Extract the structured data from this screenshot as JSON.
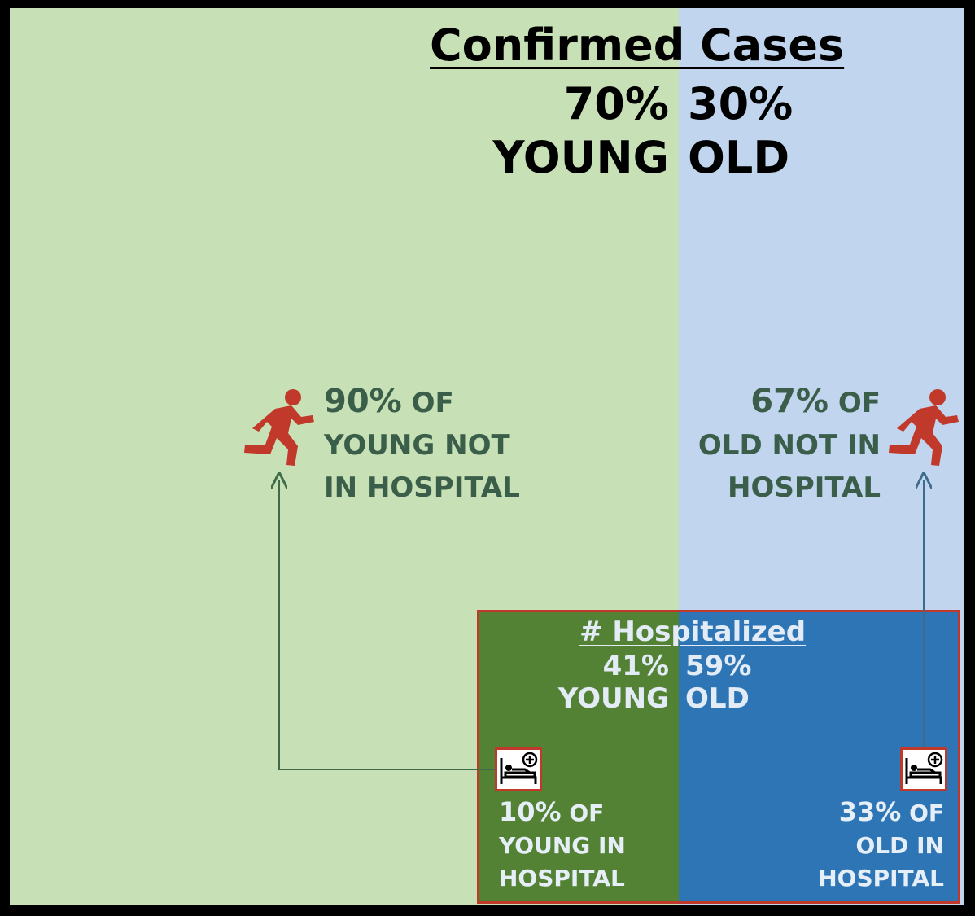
{
  "confirmed": {
    "title": "Confirmed Cases",
    "young_pct": "70%",
    "old_pct": "30%",
    "young_label": "YOUNG",
    "old_label": "OLD"
  },
  "not_in_hospital": {
    "young": {
      "pct": "90%",
      "of": "OF",
      "line2": "YOUNG NOT",
      "line3": "IN HOSPITAL"
    },
    "old": {
      "pct": "67%",
      "of": "OF",
      "line2": "OLD NOT IN",
      "line3": "HOSPITAL"
    }
  },
  "hospitalized": {
    "title": "# Hospitalized",
    "young_pct": "41%",
    "old_pct": "59%",
    "young_label": "YOUNG",
    "old_label": "OLD"
  },
  "in_hospital": {
    "young": {
      "pct": "10%",
      "of": "OF",
      "line2": "YOUNG IN",
      "line3": "HOSPITAL"
    },
    "old": {
      "pct": "33%",
      "of": "OF",
      "line2": "OLD IN",
      "line3": "HOSPITAL"
    }
  },
  "icons": [
    "running-person-icon",
    "hospital-bed-icon",
    "arrow-icon"
  ],
  "colors": {
    "young_light": "#c8e0b5",
    "old_light": "#c1d6ee",
    "young_dark": "#548235",
    "old_dark": "#2e75b6",
    "accent_red": "#c0392b"
  }
}
